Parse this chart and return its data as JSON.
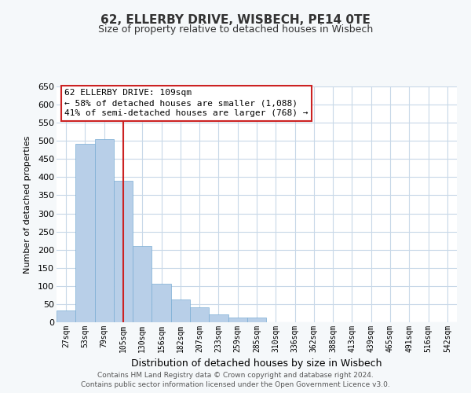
{
  "title": "62, ELLERBY DRIVE, WISBECH, PE14 0TE",
  "subtitle": "Size of property relative to detached houses in Wisbech",
  "xlabel": "Distribution of detached houses by size in Wisbech",
  "ylabel": "Number of detached properties",
  "bin_labels": [
    "27sqm",
    "53sqm",
    "79sqm",
    "105sqm",
    "130sqm",
    "156sqm",
    "182sqm",
    "207sqm",
    "233sqm",
    "259sqm",
    "285sqm",
    "310sqm",
    "336sqm",
    "362sqm",
    "388sqm",
    "413sqm",
    "439sqm",
    "465sqm",
    "491sqm",
    "516sqm",
    "542sqm"
  ],
  "bar_values": [
    33,
    492,
    504,
    390,
    210,
    107,
    62,
    41,
    22,
    14,
    13,
    1,
    0,
    0,
    0,
    0,
    0,
    0,
    0,
    1,
    1
  ],
  "bar_color": "#b8cfe8",
  "bar_edge_color": "#7aadd4",
  "property_line_x": 3.0,
  "property_line_label": "62 ELLERBY DRIVE: 109sqm",
  "annotation_line1": "← 58% of detached houses are smaller (1,088)",
  "annotation_line2": "41% of semi-detached houses are larger (768) →",
  "annotation_box_facecolor": "#ffffff",
  "annotation_box_edgecolor": "#cc2222",
  "property_line_color": "#cc2222",
  "ylim": [
    0,
    650
  ],
  "yticks": [
    0,
    50,
    100,
    150,
    200,
    250,
    300,
    350,
    400,
    450,
    500,
    550,
    600,
    650
  ],
  "footer_line1": "Contains HM Land Registry data © Crown copyright and database right 2024.",
  "footer_line2": "Contains public sector information licensed under the Open Government Licence v3.0.",
  "fig_facecolor": "#f5f8fa",
  "plot_facecolor": "#ffffff",
  "grid_color": "#c8d8e8",
  "title_fontsize": 11,
  "subtitle_fontsize": 9,
  "ylabel_fontsize": 8,
  "xlabel_fontsize": 9,
  "ytick_fontsize": 8,
  "xtick_fontsize": 7,
  "annotation_fontsize": 8,
  "footer_fontsize": 6.5
}
